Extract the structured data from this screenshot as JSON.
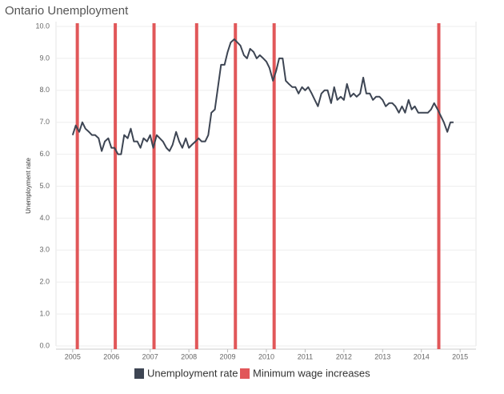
{
  "chart_data": {
    "type": "line",
    "title": "Ontario Unemployment",
    "y_label": "Unemployment rate",
    "x": [
      2005,
      2005.08,
      2005.17,
      2005.25,
      2005.33,
      2005.42,
      2005.5,
      2005.58,
      2005.67,
      2005.75,
      2005.83,
      2005.92,
      2006,
      2006.08,
      2006.17,
      2006.25,
      2006.33,
      2006.42,
      2006.5,
      2006.58,
      2006.67,
      2006.75,
      2006.83,
      2006.92,
      2007,
      2007.08,
      2007.17,
      2007.25,
      2007.33,
      2007.42,
      2007.5,
      2007.58,
      2007.67,
      2007.75,
      2007.83,
      2007.92,
      2008,
      2008.08,
      2008.17,
      2008.25,
      2008.33,
      2008.42,
      2008.5,
      2008.58,
      2008.67,
      2008.75,
      2008.83,
      2008.92,
      2009,
      2009.08,
      2009.17,
      2009.25,
      2009.33,
      2009.42,
      2009.5,
      2009.58,
      2009.67,
      2009.75,
      2009.83,
      2009.92,
      2010,
      2010.08,
      2010.17,
      2010.25,
      2010.33,
      2010.42,
      2010.5,
      2010.58,
      2010.67,
      2010.75,
      2010.83,
      2010.92,
      2011,
      2011.08,
      2011.17,
      2011.25,
      2011.33,
      2011.42,
      2011.5,
      2011.58,
      2011.67,
      2011.75,
      2011.83,
      2011.92,
      2012,
      2012.08,
      2012.17,
      2012.25,
      2012.33,
      2012.42,
      2012.5,
      2012.58,
      2012.67,
      2012.75,
      2012.83,
      2012.92,
      2013,
      2013.08,
      2013.17,
      2013.25,
      2013.33,
      2013.42,
      2013.5,
      2013.58,
      2013.67,
      2013.75,
      2013.83,
      2013.92,
      2014,
      2014.08,
      2014.17,
      2014.25,
      2014.33,
      2014.42,
      2014.5,
      2014.58,
      2014.67,
      2014.75,
      2014.83
    ],
    "series": [
      {
        "name": "Unemployment rate",
        "color": "#3d4553",
        "values": [
          6.6,
          6.9,
          6.7,
          7.0,
          6.8,
          6.7,
          6.6,
          6.6,
          6.5,
          6.1,
          6.4,
          6.5,
          6.2,
          6.2,
          6.0,
          6.0,
          6.6,
          6.5,
          6.8,
          6.4,
          6.4,
          6.2,
          6.5,
          6.4,
          6.6,
          6.2,
          6.6,
          6.5,
          6.4,
          6.2,
          6.1,
          6.3,
          6.7,
          6.4,
          6.2,
          6.5,
          6.2,
          6.3,
          6.4,
          6.5,
          6.4,
          6.4,
          6.6,
          7.3,
          7.4,
          8.1,
          8.8,
          8.8,
          9.2,
          9.5,
          9.6,
          9.5,
          9.4,
          9.1,
          9.0,
          9.3,
          9.2,
          9.0,
          9.1,
          9.0,
          8.9,
          8.7,
          8.3,
          8.6,
          9.0,
          9.0,
          8.3,
          8.2,
          8.1,
          8.1,
          7.9,
          8.1,
          8.0,
          8.1,
          7.9,
          7.7,
          7.5,
          7.9,
          8.0,
          8.0,
          7.6,
          8.1,
          7.7,
          7.8,
          7.7,
          8.2,
          7.8,
          7.9,
          7.8,
          7.9,
          8.4,
          7.9,
          7.9,
          7.7,
          7.8,
          7.8,
          7.7,
          7.5,
          7.6,
          7.6,
          7.5,
          7.3,
          7.5,
          7.3,
          7.7,
          7.4,
          7.5,
          7.3,
          7.3,
          7.3,
          7.3,
          7.4,
          7.6,
          7.4,
          7.2,
          7.0,
          6.7,
          7.0,
          7.0
        ]
      }
    ],
    "vlines": {
      "name": "Minimum wage increases",
      "color": "#e15759",
      "x": [
        2005.12,
        2006.1,
        2007.1,
        2008.2,
        2009.2,
        2010.2,
        2014.45
      ]
    },
    "xlim": [
      2004.57,
      2015.41
    ],
    "xticks": [
      2005,
      2006,
      2007,
      2008,
      2009,
      2010,
      2011,
      2012,
      2013,
      2014,
      2015
    ],
    "ylim": [
      0,
      10
    ],
    "yticks": [
      {
        "value": 0,
        "label": "0.0"
      },
      {
        "value": 1,
        "label": "1.0"
      },
      {
        "value": 2,
        "label": "2.0"
      },
      {
        "value": 3,
        "label": "3.0"
      },
      {
        "value": 4,
        "label": "4.0"
      },
      {
        "value": 5,
        "label": "5.0"
      },
      {
        "value": 6,
        "label": "6.0"
      },
      {
        "value": 7,
        "label": "7.0"
      },
      {
        "value": 8,
        "label": "8.0"
      },
      {
        "value": 9,
        "label": "9.0"
      },
      {
        "value": 10,
        "label": "10.0"
      }
    ],
    "grid": true
  }
}
